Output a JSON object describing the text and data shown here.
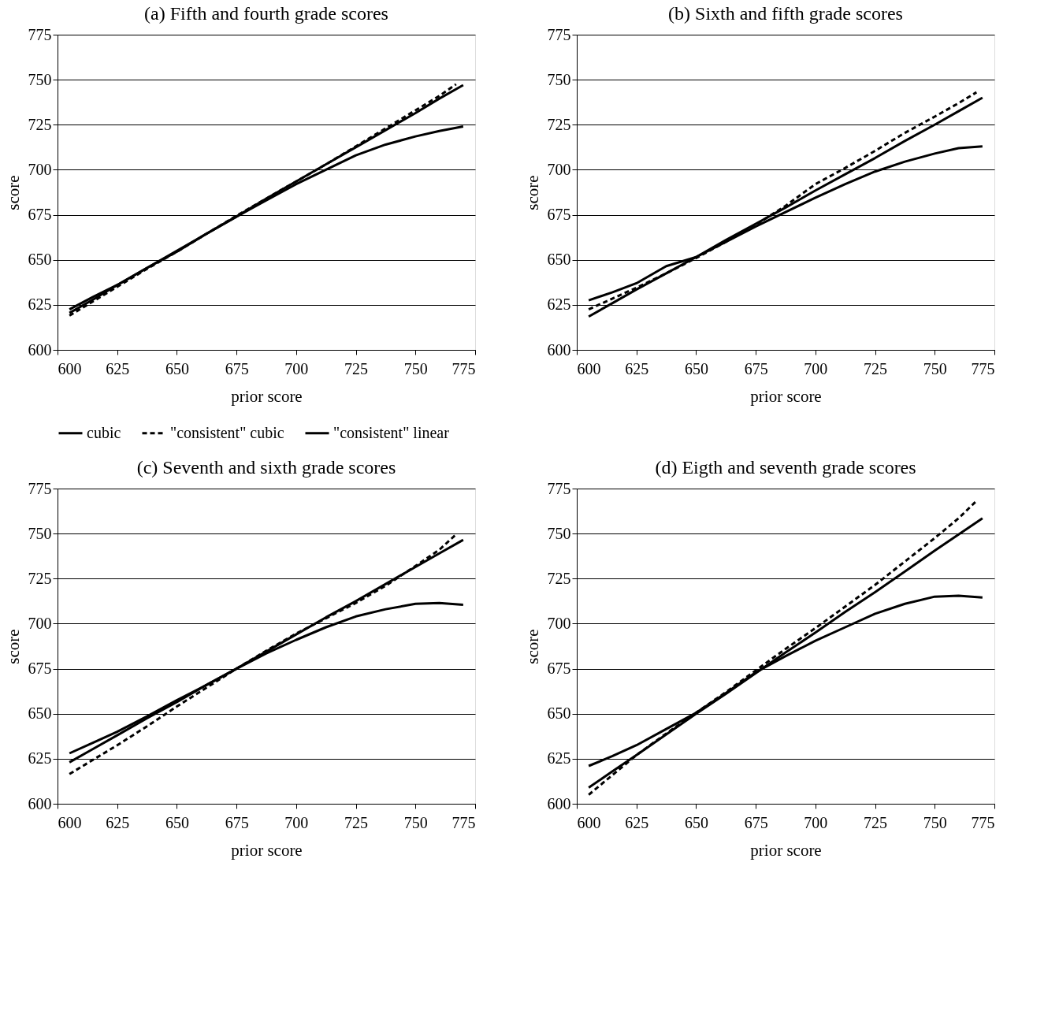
{
  "chart_data": [
    {
      "type": "line",
      "title": "(a) Fifth and fourth grade scores",
      "xlabel": "prior score",
      "ylabel": "score",
      "xlim": [
        600,
        775
      ],
      "ylim": [
        600,
        775
      ],
      "xticks": [
        600,
        625,
        650,
        675,
        700,
        725,
        750,
        775
      ],
      "yticks": [
        600,
        625,
        650,
        675,
        700,
        725,
        750,
        775
      ],
      "grid": "y",
      "legend": "bottom",
      "x": [
        605,
        615,
        625,
        637.5,
        650,
        662.5,
        675,
        687.5,
        700,
        712.5,
        725,
        737.5,
        750,
        760,
        770
      ],
      "series": [
        {
          "name": "cubic",
          "color": "#000000",
          "line_style": "solid",
          "values": [
            622.5,
            629.5,
            636,
            645.5,
            654.5,
            664.5,
            674,
            683,
            692,
            700,
            708,
            714,
            718.5,
            721.5,
            724
          ]
        },
        {
          "name": "\"consistent\" cubic",
          "color": "#000000",
          "line_style": "dashed",
          "x": [
            605,
            615,
            625,
            637.5,
            650,
            662.5,
            675,
            687.5,
            700,
            712.5,
            725,
            737.5,
            750,
            760,
            767
          ],
          "values": [
            619,
            627,
            635,
            645,
            654.5,
            664.5,
            674.5,
            684,
            693.5,
            703,
            713,
            723,
            733,
            741,
            747.5
          ]
        },
        {
          "name": "\"consistent\" linear",
          "color": "#000000",
          "line_style": "solid",
          "values": [
            620.5,
            628,
            636,
            645.5,
            655,
            664.5,
            674,
            684,
            693.5,
            703,
            712.5,
            722,
            731.5,
            739.5,
            747
          ]
        }
      ]
    },
    {
      "type": "line",
      "title": "(b) Sixth and fifth grade scores",
      "xlabel": "prior score",
      "ylabel": "score",
      "xlim": [
        600,
        775
      ],
      "ylim": [
        600,
        775
      ],
      "xticks": [
        600,
        625,
        650,
        675,
        700,
        725,
        750,
        775
      ],
      "yticks": [
        600,
        625,
        650,
        675,
        700,
        725,
        750,
        775
      ],
      "grid": "y",
      "x": [
        605,
        615,
        625,
        637.5,
        650,
        662.5,
        675,
        687.5,
        700,
        712.5,
        725,
        737.5,
        750,
        760,
        770
      ],
      "series": [
        {
          "color": "#000000",
          "line_style": "solid",
          "values": [
            627.5,
            632,
            637,
            646.5,
            651.5,
            660,
            668.5,
            676.5,
            684.5,
            692,
            699,
            704.5,
            709,
            712,
            713
          ]
        },
        {
          "color": "#000000",
          "line_style": "dashed",
          "x": [
            605,
            615,
            625,
            637.5,
            650,
            662.5,
            675,
            687.5,
            700,
            712.5,
            725,
            737.5,
            750,
            760,
            767.5
          ],
          "values": [
            622.5,
            628.5,
            634.5,
            642.5,
            651,
            660,
            669.5,
            680,
            692,
            701,
            710.5,
            720.5,
            729.5,
            737,
            743
          ]
        },
        {
          "color": "#000000",
          "line_style": "solid",
          "values": [
            618.5,
            626,
            633.5,
            642.5,
            651.5,
            661,
            670,
            679,
            688.5,
            697.5,
            706.5,
            716,
            725,
            732.5,
            740
          ]
        }
      ]
    },
    {
      "type": "line",
      "title": "(c) Seventh and sixth grade scores",
      "xlabel": "prior score",
      "ylabel": "score",
      "xlim": [
        600,
        775
      ],
      "ylim": [
        600,
        775
      ],
      "xticks": [
        600,
        625,
        650,
        675,
        700,
        725,
        750,
        775
      ],
      "yticks": [
        600,
        625,
        650,
        675,
        700,
        725,
        750,
        775
      ],
      "grid": "y",
      "x": [
        605,
        615,
        625,
        637.5,
        650,
        662.5,
        675,
        687.5,
        700,
        712.5,
        725,
        737.5,
        750,
        760,
        770
      ],
      "series": [
        {
          "color": "#000000",
          "line_style": "solid",
          "values": [
            628,
            634,
            640,
            648.5,
            657.5,
            666,
            675,
            683.5,
            691,
            698,
            704,
            708,
            711,
            711.5,
            710.5
          ]
        },
        {
          "color": "#000000",
          "line_style": "dashed",
          "x": [
            605,
            615,
            625,
            637.5,
            650,
            662.5,
            675,
            687.5,
            700,
            712.5,
            725,
            737.5,
            750,
            760,
            767
          ],
          "values": [
            616.5,
            624.5,
            632.5,
            643,
            654,
            664.5,
            675,
            685,
            694.5,
            703,
            711.5,
            721,
            732,
            741,
            749.5
          ]
        },
        {
          "color": "#000000",
          "line_style": "solid",
          "values": [
            623,
            630.5,
            638,
            647.5,
            656.5,
            666,
            675,
            684.5,
            694,
            703.5,
            712.5,
            722,
            731.5,
            739,
            746.5
          ]
        }
      ]
    },
    {
      "type": "line",
      "title": "(d) Eigth and seventh grade scores",
      "xlabel": "prior score",
      "ylabel": "score",
      "xlim": [
        600,
        775
      ],
      "ylim": [
        600,
        775
      ],
      "xticks": [
        600,
        625,
        650,
        675,
        700,
        725,
        750,
        775
      ],
      "yticks": [
        600,
        625,
        650,
        675,
        700,
        725,
        750,
        775
      ],
      "grid": "y",
      "x": [
        605,
        615,
        625,
        637.5,
        650,
        662.5,
        675,
        687.5,
        700,
        712.5,
        725,
        737.5,
        750,
        760,
        770
      ],
      "series": [
        {
          "color": "#000000",
          "line_style": "solid",
          "values": [
            621,
            626.5,
            632.5,
            641.5,
            650.5,
            661.5,
            673,
            682,
            690.5,
            698,
            705.5,
            711,
            715,
            715.5,
            714.5
          ]
        },
        {
          "color": "#000000",
          "line_style": "dashed",
          "x": [
            605,
            615,
            625,
            637.5,
            650,
            662.5,
            675,
            687.5,
            700,
            712.5,
            725,
            737.5,
            750,
            760,
            767
          ],
          "values": [
            605,
            616,
            627,
            639,
            650.5,
            662,
            674,
            686,
            697.5,
            709.5,
            721.5,
            734.5,
            747.5,
            758.5,
            767.5
          ]
        },
        {
          "color": "#000000",
          "line_style": "solid",
          "values": [
            609,
            618,
            627,
            638.5,
            650,
            661,
            672.5,
            684,
            695,
            706.5,
            717.5,
            729,
            740.5,
            749.5,
            758.5
          ]
        }
      ]
    }
  ]
}
